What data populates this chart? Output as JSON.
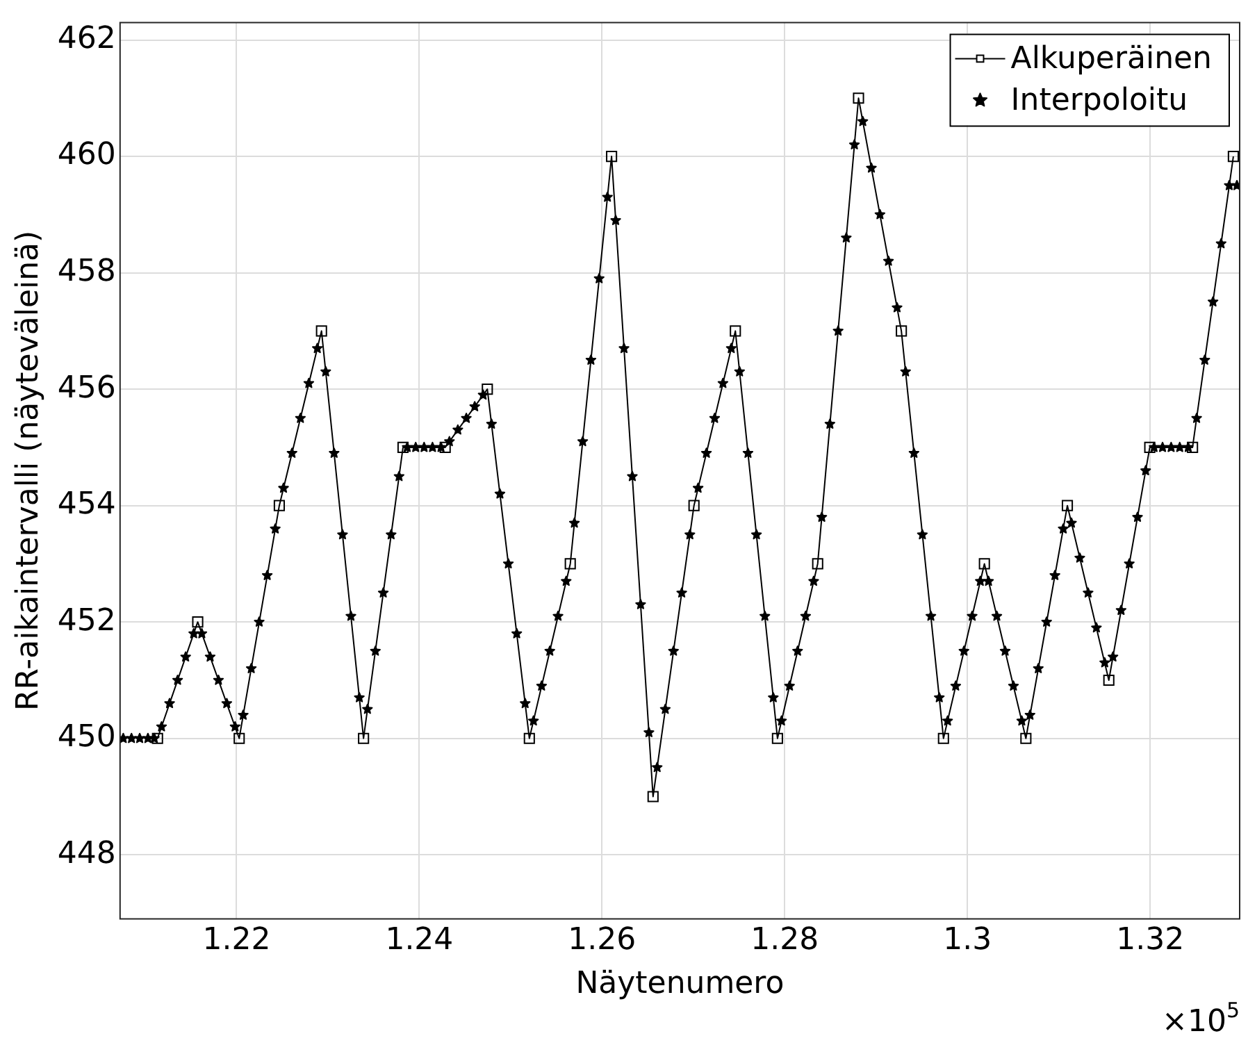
{
  "chart_data": {
    "type": "line",
    "xlabel": "Näytenumero",
    "ylabel": "RR-aikaintervalli (näyteväleinä)",
    "annotations": [
      "×10$^{5}$"
    ],
    "xlim": [
      1.20725,
      1.3298
    ],
    "ylim": [
      446.9,
      462.3
    ],
    "xticks": [
      1.22,
      1.24,
      1.26,
      1.28,
      1.3,
      1.32
    ],
    "yticks": [
      448,
      450,
      452,
      454,
      456,
      458,
      460,
      462
    ],
    "grid": true,
    "legend": "top right",
    "series": [
      {
        "name": "Alkuperäinen",
        "marker": "square",
        "line_style": "solid",
        "color": "#000000",
        "x": [
          1.21135,
          1.21575,
          1.22029,
          1.22468,
          1.2293,
          1.2339,
          1.23822,
          1.24284,
          1.24745,
          1.25205,
          1.25653,
          1.26105,
          1.26559,
          1.27007,
          1.2746,
          1.27921,
          1.28361,
          1.28808,
          1.29277,
          1.29738,
          1.30186,
          1.3064,
          1.31094,
          1.31548,
          1.31996,
          1.32464,
          1.32911
        ],
        "values": [
          450,
          452,
          450,
          454,
          457,
          450,
          455,
          455,
          456,
          450,
          453,
          460,
          449,
          454,
          457,
          450,
          453,
          461,
          457,
          450,
          453,
          450,
          454,
          451,
          455,
          455,
          460
        ]
      },
      {
        "name": "Interpoloitu",
        "type": "scatter",
        "marker": "star",
        "color": "#000000",
        "x": [
          1.2076,
          1.2085,
          1.2094,
          1.2103,
          1.211,
          1.21179,
          1.21267,
          1.21355,
          1.21443,
          1.21531,
          1.2162,
          1.21711,
          1.21802,
          1.21893,
          1.21984,
          1.22073,
          1.22161,
          1.22248,
          1.22336,
          1.22424,
          1.22514,
          1.22607,
          1.22699,
          1.22791,
          1.22884,
          1.22976,
          1.23068,
          1.2316,
          1.23252,
          1.23344,
          1.23433,
          1.2352,
          1.23606,
          1.23692,
          1.23779,
          1.23868,
          1.23961,
          1.24053,
          1.24145,
          1.24238,
          1.2433,
          1.24422,
          1.24515,
          1.24607,
          1.24699,
          1.24791,
          1.24883,
          1.24975,
          1.25067,
          1.25159,
          1.2525,
          1.25339,
          1.25429,
          1.25519,
          1.25608,
          1.25698,
          1.25789,
          1.25879,
          1.25969,
          1.2606,
          1.2615,
          1.26241,
          1.26332,
          1.26423,
          1.26514,
          1.26604,
          1.26693,
          1.26783,
          1.26873,
          1.26962,
          1.27052,
          1.27143,
          1.27233,
          1.27324,
          1.27415,
          1.27506,
          1.27598,
          1.27691,
          1.27783,
          1.27875,
          1.27965,
          1.28053,
          1.28141,
          1.28229,
          1.28317,
          1.28406,
          1.28495,
          1.28585,
          1.28674,
          1.28763,
          1.28855,
          1.28949,
          1.29043,
          1.29136,
          1.2923,
          1.29323,
          1.29415,
          1.29507,
          1.296,
          1.29692,
          1.29783,
          1.29872,
          1.29962,
          1.30052,
          1.30141,
          1.30231,
          1.30322,
          1.30413,
          1.30504,
          1.30595,
          1.30685,
          1.30776,
          1.30867,
          1.30958,
          1.31049,
          1.31139,
          1.3123,
          1.31321,
          1.31412,
          1.31503,
          1.31593,
          1.31682,
          1.31772,
          1.31862,
          1.31951,
          1.32043,
          1.32136,
          1.3223,
          1.32324,
          1.32417,
          1.32509,
          1.32598,
          1.32688,
          1.32777,
          1.32866,
          1.3295
        ],
        "values": [
          450,
          450,
          450,
          450,
          450,
          450.2,
          450.6,
          451,
          451.4,
          451.8,
          451.8,
          451.4,
          451,
          450.6,
          450.2,
          450.4,
          451.2,
          452,
          452.8,
          453.6,
          454.3,
          454.9,
          455.5,
          456.1,
          456.7,
          456.3,
          454.9,
          453.5,
          452.1,
          450.7,
          450.5,
          451.5,
          452.5,
          453.5,
          454.5,
          455,
          455,
          455,
          455,
          455,
          455.1,
          455.3,
          455.5,
          455.7,
          455.9,
          455.4,
          454.2,
          453,
          451.8,
          450.6,
          450.3,
          450.9,
          451.5,
          452.1,
          452.7,
          453.7,
          455.1,
          456.5,
          457.9,
          459.3,
          458.9,
          456.7,
          454.5,
          452.3,
          450.1,
          449.5,
          450.5,
          451.5,
          452.5,
          453.5,
          454.3,
          454.9,
          455.5,
          456.1,
          456.7,
          456.3,
          454.9,
          453.5,
          452.1,
          450.7,
          450.3,
          450.9,
          451.5,
          452.1,
          452.7,
          453.8,
          455.4,
          457,
          458.6,
          460.2,
          460.6,
          459.8,
          459,
          458.2,
          457.4,
          456.3,
          454.9,
          453.5,
          452.1,
          450.7,
          450.3,
          450.9,
          451.5,
          452.1,
          452.7,
          452.7,
          452.1,
          451.5,
          450.9,
          450.3,
          450.4,
          451.2,
          452,
          452.8,
          453.6,
          453.7,
          453.1,
          452.5,
          451.9,
          451.3,
          451.4,
          452.2,
          453,
          453.8,
          454.6,
          455,
          455,
          455,
          455,
          455,
          455.5,
          456.5,
          457.5,
          458.5,
          459.5,
          459.5
        ]
      }
    ]
  }
}
